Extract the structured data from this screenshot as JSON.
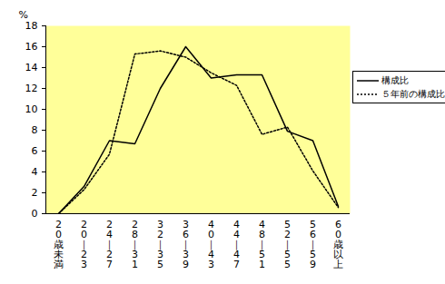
{
  "chart_data": {
    "type": "line",
    "y_label": "%",
    "categories": [
      "20歳未満",
      "20｜23",
      "24｜27",
      "28｜31",
      "32｜35",
      "36｜39",
      "40｜43",
      "44｜47",
      "48｜51",
      "52｜55",
      "56｜59",
      "60歳以上"
    ],
    "series": [
      {
        "name": "構成比",
        "color": "#000000",
        "line_style": "solid",
        "values": [
          0,
          2.6,
          7.0,
          6.7,
          12.0,
          16.0,
          13.0,
          13.3,
          13.3,
          7.9,
          7.0,
          0.7
        ]
      },
      {
        "name": "５年前の構成比",
        "color": "#000000",
        "line_style": "dotted",
        "values": [
          0,
          2.3,
          5.7,
          15.3,
          15.6,
          15.0,
          13.5,
          12.3,
          7.6,
          8.3,
          4.1,
          0.6
        ]
      }
    ],
    "ylim": [
      0,
      18
    ],
    "yticks": [
      0,
      2,
      4,
      6,
      8,
      10,
      12,
      14,
      16,
      18
    ],
    "grid": false,
    "legend": "right"
  }
}
